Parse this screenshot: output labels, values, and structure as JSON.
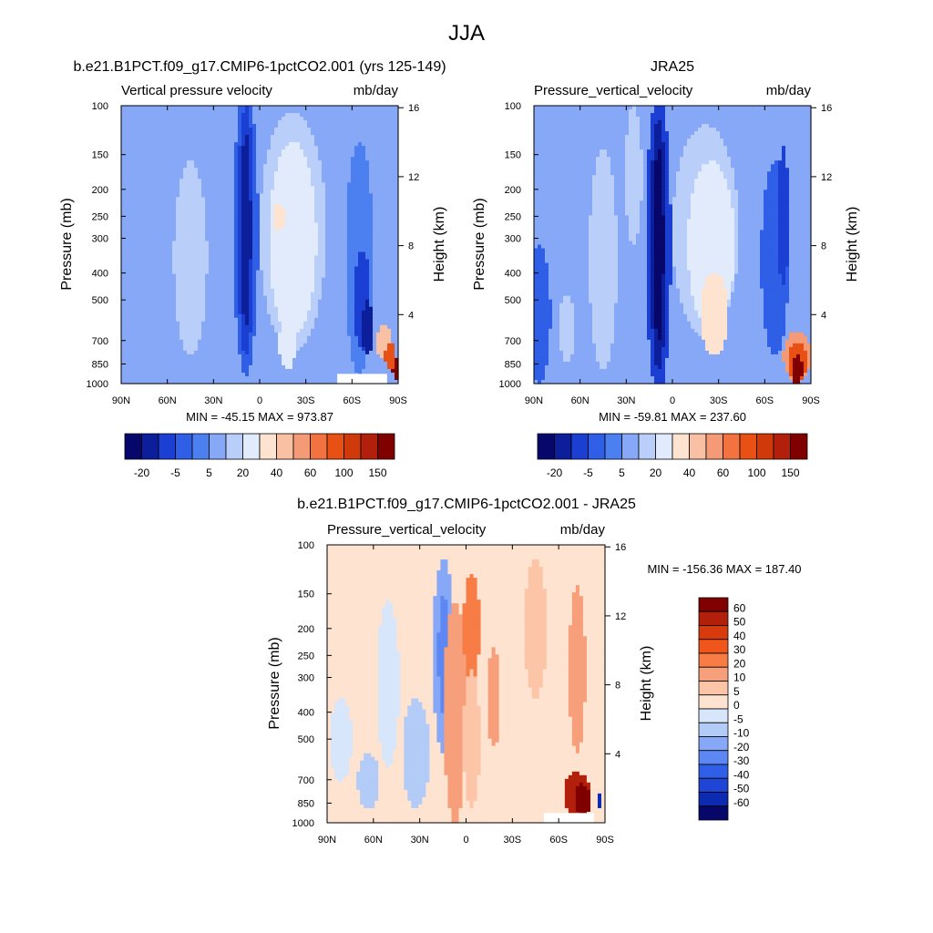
{
  "figure": {
    "title": "JJA"
  },
  "panels": [
    {
      "title": "b.e21.B1PCT.f09_g17.CMIP6-1pctCO2.001 (yrs 125-149)",
      "left_label": "Vertical pressure velocity",
      "right_label": "mb/day",
      "ylabel": "Pressure (mb)",
      "y2label": "Height (km)",
      "minmax": "MIN = -45.15  MAX = 973.87"
    },
    {
      "title": "JRA25",
      "left_label": "Pressure_vertical_velocity",
      "right_label": "mb/day",
      "ylabel": "Pressure (mb)",
      "y2label": "Height (km)",
      "minmax": "MIN = -59.81  MAX = 237.60"
    },
    {
      "title": "b.e21.B1PCT.f09_g17.CMIP6-1pctCO2.001 - JRA25",
      "left_label": "Pressure_vertical_velocity",
      "right_label": "mb/day",
      "ylabel": "Pressure (mb)",
      "y2label": "Height (km)",
      "minmax": "MIN = -156.36  MAX = 187.40"
    }
  ],
  "chart_data": {
    "type": "heatmap",
    "x_ticks": [
      "90N",
      "60N",
      "30N",
      "0",
      "30S",
      "60S",
      "90S"
    ],
    "x_values": [
      90,
      60,
      30,
      0,
      -30,
      -60,
      -90
    ],
    "pressure_ticks": [
      "100",
      "150",
      "200",
      "250",
      "300",
      "400",
      "500",
      "700",
      "850",
      "1000"
    ],
    "pressure_values": [
      100,
      150,
      200,
      250,
      300,
      400,
      500,
      700,
      850,
      1000
    ],
    "height_ticks": [
      "4",
      "8",
      "12",
      "16"
    ],
    "height_values": [
      4,
      8,
      12,
      16
    ],
    "y_scale": "log",
    "ylim": [
      1000,
      100
    ],
    "colorbar_main": {
      "labels": [
        "-20",
        "-5",
        "5",
        "20",
        "40",
        "60",
        "100",
        "150"
      ],
      "colors": [
        "#07076b",
        "#0c1e9a",
        "#1a3fd2",
        "#2f5fe6",
        "#4c7ff0",
        "#86a8f7",
        "#b9cef9",
        "#e1ebfb",
        "#fde3d0",
        "#f9c0a3",
        "#f59a77",
        "#f2733f",
        "#e85014",
        "#d03a0a",
        "#b2200c",
        "#800000"
      ]
    },
    "colorbar_diff": {
      "labels": [
        "60",
        "50",
        "40",
        "30",
        "20",
        "10",
        "5",
        "0",
        "-5",
        "-10",
        "-20",
        "-30",
        "-40",
        "-50",
        "-60"
      ],
      "colors": [
        "#800000",
        "#b2200c",
        "#d83a0c",
        "#f0551b",
        "#f77c45",
        "#f79f7a",
        "#fcc5a8",
        "#fde3d0",
        "#d7e6fa",
        "#b2cbf7",
        "#86a8f7",
        "#5d87f2",
        "#2f5fe6",
        "#1f45d6",
        "#0c2bb0",
        "#07076b"
      ]
    },
    "fields": {
      "model": {
        "background": 5,
        "blobs": [
          [
            0.25,
            0.55,
            0.06,
            0.35,
            6
          ],
          [
            0.12,
            0.5,
            0.04,
            0.4,
            5
          ],
          [
            0.43,
            0.75,
            0.07,
            0.2,
            5
          ],
          [
            0.45,
            0.45,
            0.045,
            0.52,
            3
          ],
          [
            0.45,
            0.45,
            0.03,
            0.45,
            2
          ],
          [
            0.45,
            0.45,
            0.018,
            0.35,
            1
          ],
          [
            0.62,
            0.45,
            0.12,
            0.43,
            6
          ],
          [
            0.62,
            0.48,
            0.085,
            0.35,
            7
          ],
          [
            0.6,
            0.85,
            0.03,
            0.1,
            7
          ],
          [
            0.57,
            0.4,
            0.02,
            0.05,
            8
          ],
          [
            0.86,
            0.55,
            0.05,
            0.42,
            4
          ],
          [
            0.87,
            0.7,
            0.03,
            0.18,
            2
          ],
          [
            0.89,
            0.8,
            0.02,
            0.1,
            1
          ],
          [
            0.95,
            0.85,
            0.03,
            0.06,
            9
          ],
          [
            0.97,
            0.9,
            0.018,
            0.05,
            12
          ],
          [
            0.99,
            0.95,
            0.01,
            0.04,
            15
          ]
        ],
        "mask": [
          0.78,
          0.96,
          0.965,
          1.0
        ]
      },
      "obs": {
        "background": 5,
        "blobs": [
          [
            0.02,
            0.75,
            0.04,
            0.25,
            3
          ],
          [
            0.12,
            0.8,
            0.03,
            0.12,
            6
          ],
          [
            0.25,
            0.55,
            0.05,
            0.4,
            6
          ],
          [
            0.45,
            0.5,
            0.045,
            0.55,
            2
          ],
          [
            0.45,
            0.5,
            0.03,
            0.45,
            1
          ],
          [
            0.45,
            0.5,
            0.018,
            0.35,
            0
          ],
          [
            0.36,
            0.25,
            0.03,
            0.25,
            6
          ],
          [
            0.62,
            0.45,
            0.12,
            0.38,
            6
          ],
          [
            0.64,
            0.5,
            0.085,
            0.3,
            7
          ],
          [
            0.65,
            0.75,
            0.05,
            0.15,
            8
          ],
          [
            0.87,
            0.55,
            0.05,
            0.35,
            3
          ],
          [
            0.9,
            0.4,
            0.02,
            0.25,
            2
          ],
          [
            0.95,
            0.9,
            0.05,
            0.09,
            10
          ],
          [
            0.95,
            0.92,
            0.035,
            0.07,
            12
          ],
          [
            0.95,
            0.95,
            0.02,
            0.05,
            15
          ]
        ],
        "mask": null
      },
      "diff": {
        "background": 8,
        "blobs": [
          [
            0.05,
            0.7,
            0.04,
            0.15,
            7
          ],
          [
            0.15,
            0.85,
            0.04,
            0.1,
            6
          ],
          [
            0.22,
            0.5,
            0.04,
            0.3,
            7
          ],
          [
            0.32,
            0.75,
            0.05,
            0.2,
            6
          ],
          [
            0.42,
            0.4,
            0.04,
            0.35,
            5
          ],
          [
            0.42,
            0.4,
            0.02,
            0.22,
            4
          ],
          [
            0.46,
            0.6,
            0.04,
            0.4,
            10
          ],
          [
            0.52,
            0.3,
            0.03,
            0.2,
            11
          ],
          [
            0.52,
            0.7,
            0.03,
            0.25,
            9
          ],
          [
            0.6,
            0.55,
            0.025,
            0.18,
            10
          ],
          [
            0.75,
            0.3,
            0.04,
            0.25,
            9
          ],
          [
            0.9,
            0.45,
            0.03,
            0.3,
            10
          ],
          [
            0.9,
            0.9,
            0.05,
            0.08,
            14
          ],
          [
            0.92,
            0.92,
            0.03,
            0.06,
            15
          ],
          [
            0.98,
            0.92,
            0.01,
            0.03,
            1
          ]
        ],
        "mask": [
          0.78,
          0.96,
          0.965,
          1.0
        ]
      }
    }
  }
}
